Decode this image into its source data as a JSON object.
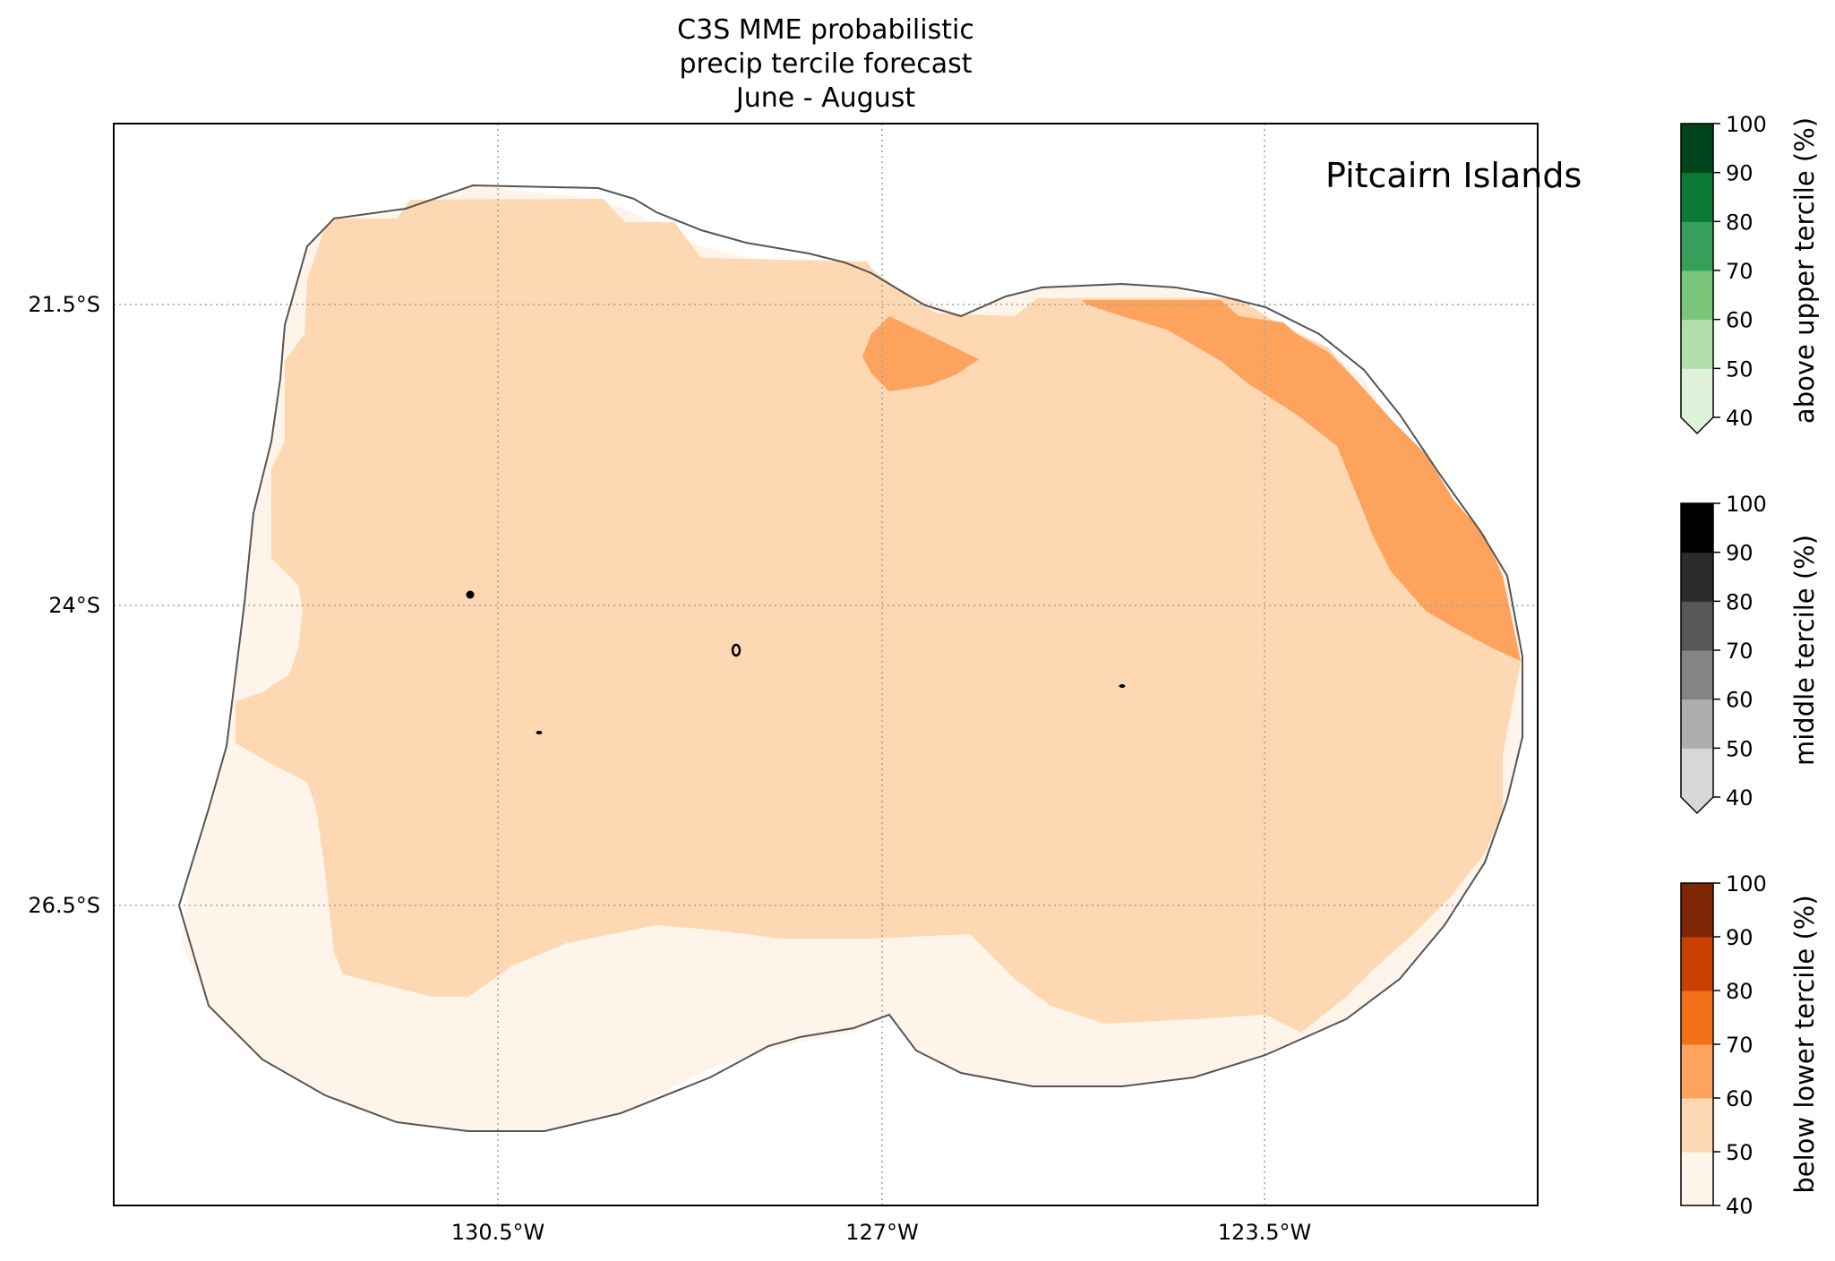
{
  "title_lines": [
    "C3S MME probabilistic",
    "precip tercile forecast",
    "June - August"
  ],
  "region_label": "Pitcairn Islands",
  "axes": {
    "lat_ticks": [
      "21.5°S",
      "24°S",
      "26.5°S"
    ],
    "lon_ticks": [
      "130.5°W",
      "127°W",
      "123.5°W"
    ],
    "gridlines": true
  },
  "colorbars": [
    {
      "label": "above upper tercile (%)",
      "ticks": [
        "100",
        "90",
        "80",
        "70",
        "60",
        "50",
        "40"
      ],
      "colors": [
        "#00441b",
        "#0b7a35",
        "#36a05a",
        "#79c67a",
        "#b2e0ab",
        "#def2d9"
      ],
      "extend_min": true
    },
    {
      "label": "middle tercile (%)",
      "ticks": [
        "100",
        "90",
        "80",
        "70",
        "60",
        "50",
        "40"
      ],
      "colors": [
        "#000000",
        "#2b2b2b",
        "#575757",
        "#858585",
        "#aeaeae",
        "#d7d7d7"
      ],
      "extend_min": true
    },
    {
      "label": "below lower tercile (%)",
      "ticks": [
        "100",
        "90",
        "80",
        "70",
        "60",
        "50",
        "40"
      ],
      "colors": [
        "#7f2704",
        "#c84002",
        "#f3701b",
        "#fda35d",
        "#fdd8b2",
        "#fff4e9"
      ],
      "extend_min": false
    }
  ],
  "map_fill_colors": {
    "below_40_50": "#fff4e9",
    "below_50_60": "#fdd8b2",
    "below_60_70": "#fda35d",
    "outline": "#555555",
    "island": "#000000"
  }
}
